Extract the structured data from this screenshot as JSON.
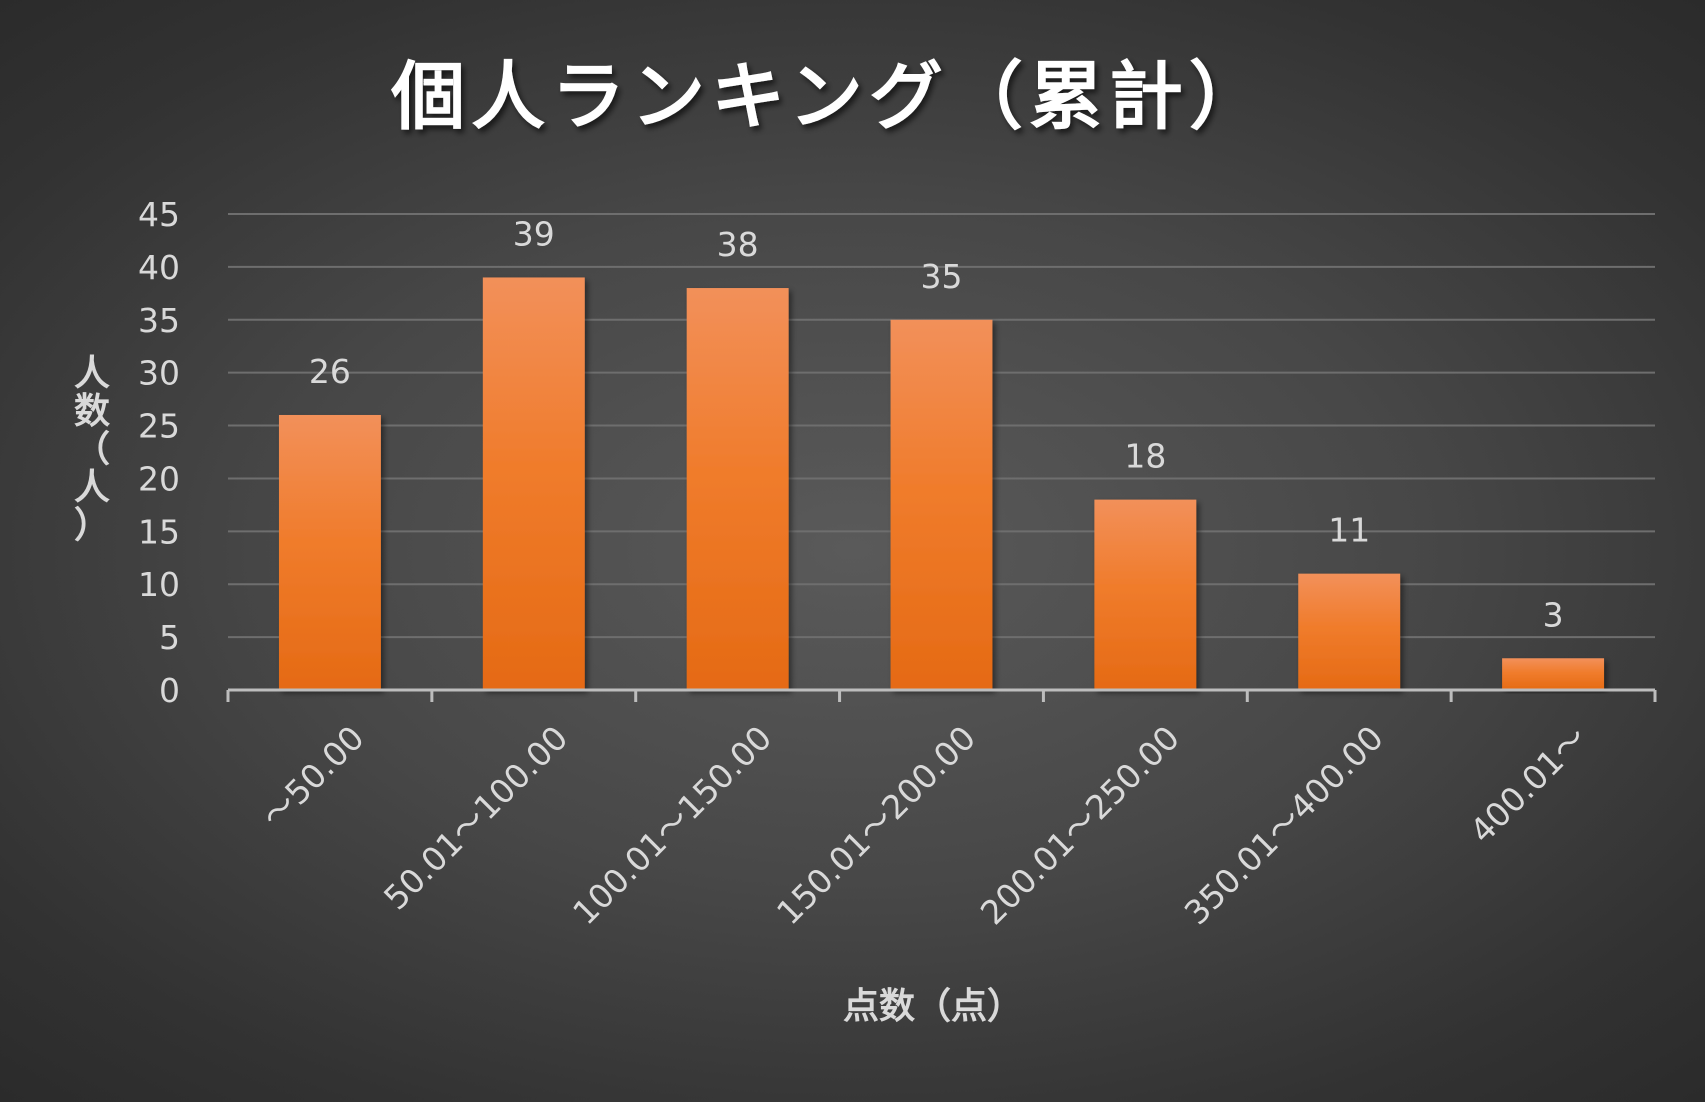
{
  "chart_data": {
    "type": "bar",
    "title": "個人ランキング（累計）",
    "xlabel": "点数（点）",
    "ylabel": "人数（人）",
    "categories": [
      "～50.00",
      "50.01～100.00",
      "100.01～150.00",
      "150.01～200.00",
      "200.01～250.00",
      "350.01～400.00",
      "400.01～"
    ],
    "values": [
      26,
      39,
      38,
      35,
      18,
      11,
      3
    ],
    "ylim": [
      0,
      45
    ],
    "yticks": [
      0,
      5,
      10,
      15,
      20,
      25,
      30,
      35,
      40,
      45
    ],
    "grid": true,
    "data_labels": true,
    "colors": {
      "bar_top": "#f2905a",
      "bar_bottom": "#e56a14",
      "grid": "#6e6e6e",
      "axis": "#bdbdbd",
      "text": "#d9d9d9",
      "title": "#ffffff"
    }
  }
}
